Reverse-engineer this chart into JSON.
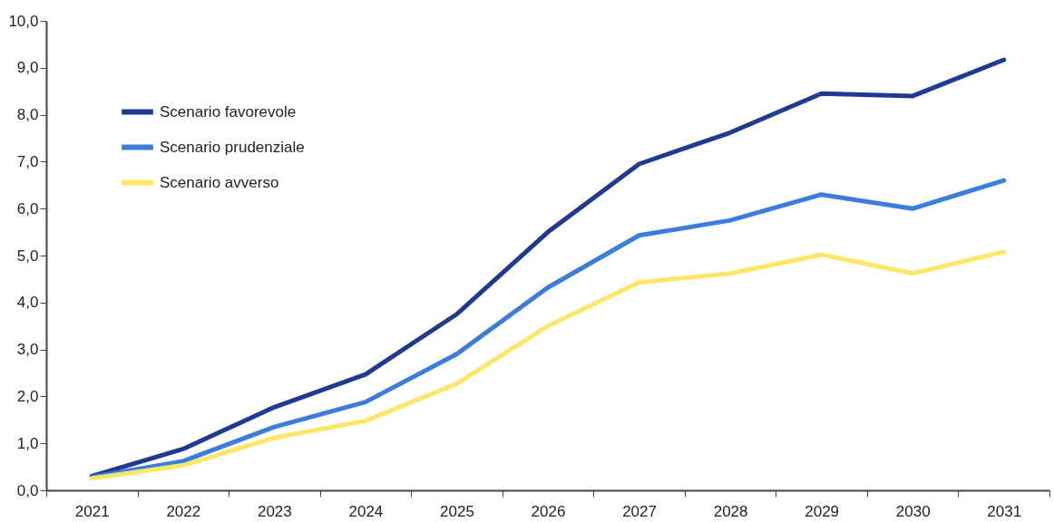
{
  "chart_data": {
    "type": "line",
    "categories": [
      "2021",
      "2022",
      "2023",
      "2024",
      "2025",
      "2026",
      "2027",
      "2028",
      "2029",
      "2030",
      "2031"
    ],
    "series": [
      {
        "name": "Scenario favorevole",
        "color": "#1f3a93",
        "values": [
          0.3,
          0.88,
          1.77,
          2.47,
          3.75,
          5.5,
          6.95,
          7.62,
          8.45,
          8.4,
          9.17
        ]
      },
      {
        "name": "Scenario prudenziale",
        "color": "#3a7ddc",
        "values": [
          0.28,
          0.62,
          1.35,
          1.88,
          2.9,
          4.32,
          5.43,
          5.75,
          6.3,
          6.0,
          6.6
        ]
      },
      {
        "name": "Scenario avverso",
        "color": "#fde668",
        "values": [
          0.25,
          0.53,
          1.12,
          1.48,
          2.27,
          3.5,
          4.43,
          4.62,
          5.02,
          4.62,
          5.08
        ]
      }
    ],
    "ylim": [
      0,
      10
    ],
    "yticks": [
      {
        "value": 0,
        "label": "0,0"
      },
      {
        "value": 1,
        "label": "1,0"
      },
      {
        "value": 2,
        "label": "2,0"
      },
      {
        "value": 3,
        "label": "3,0"
      },
      {
        "value": 4,
        "label": "4,0"
      },
      {
        "value": 5,
        "label": "5,0"
      },
      {
        "value": 6,
        "label": "6,0"
      },
      {
        "value": 7,
        "label": "7,0"
      },
      {
        "value": 8,
        "label": "8,0"
      },
      {
        "value": 9,
        "label": "9,0"
      },
      {
        "value": 10,
        "label": "10,0"
      }
    ],
    "legend": "top left",
    "grid": false,
    "marker": "none",
    "line_style": "solid"
  }
}
